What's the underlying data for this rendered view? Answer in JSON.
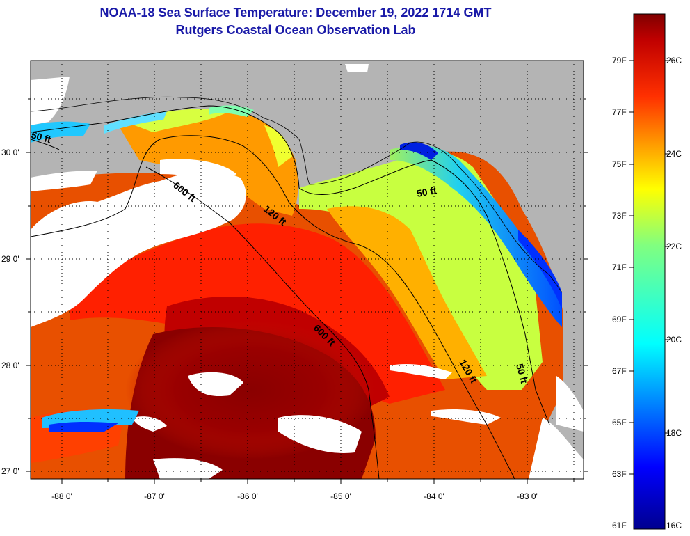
{
  "title_line1": "NOAA-18 Sea Surface Temperature:  December 19, 2022 1714 GMT",
  "title_line2": "Rutgers Coastal Ocean Observation Lab",
  "lat_labels": [
    "30 0'",
    "29 0'",
    "28 0'",
    "27 0'"
  ],
  "lon_labels": [
    "-88 0'",
    "-87 0'",
    "-86 0'",
    "-85 0'",
    "-84 0'",
    "-83 0'"
  ],
  "contour_labels": [
    "50 ft",
    "600 ft",
    "120 ft",
    "50 ft",
    "600 ft",
    "120 ft",
    "50 ft"
  ],
  "colorbar": {
    "fahrenheit": [
      "79F",
      "77F",
      "75F",
      "73F",
      "71F",
      "69F",
      "67F",
      "65F",
      "63F",
      "61F"
    ],
    "celsius": [
      "26C",
      "24C",
      "22C",
      "20C",
      "18C",
      "16C"
    ]
  },
  "colors": {
    "land": "#b4b4b4",
    "cloud": "#ffffff",
    "title": "#1a1aa8"
  }
}
